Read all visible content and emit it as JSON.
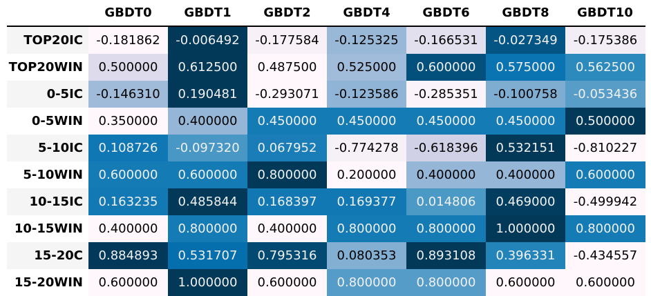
{
  "chart_data": {
    "type": "table",
    "title": "",
    "columns": [
      "GBDT0",
      "GBDT1",
      "GBDT2",
      "GBDT4",
      "GBDT6",
      "GBDT8",
      "GBDT10"
    ],
    "rows": [
      {
        "label": "TOP20IC",
        "values": [
          "-0.181862",
          "-0.006492",
          "-0.177584",
          "-0.125325",
          "-0.166531",
          "-0.027349",
          "-0.175386"
        ]
      },
      {
        "label": "TOP20WIN",
        "values": [
          "0.500000",
          "0.612500",
          "0.487500",
          "0.525000",
          "0.600000",
          "0.575000",
          "0.562500"
        ]
      },
      {
        "label": "0-5IC",
        "values": [
          "-0.146310",
          "0.190481",
          "-0.293071",
          "-0.123586",
          "-0.285351",
          "-0.100758",
          "-0.053436"
        ]
      },
      {
        "label": "0-5WIN",
        "values": [
          "0.350000",
          "0.400000",
          "0.450000",
          "0.450000",
          "0.450000",
          "0.450000",
          "0.500000"
        ]
      },
      {
        "label": "5-10IC",
        "values": [
          "0.108726",
          "-0.097320",
          "0.067952",
          "-0.774278",
          "-0.618396",
          "0.532151",
          "-0.810227"
        ]
      },
      {
        "label": "5-10WIN",
        "values": [
          "0.600000",
          "0.600000",
          "0.800000",
          "0.200000",
          "0.400000",
          "0.400000",
          "0.600000"
        ]
      },
      {
        "label": "10-15IC",
        "values": [
          "0.163235",
          "0.485844",
          "0.168397",
          "0.169377",
          "0.014806",
          "0.469000",
          "-0.499942"
        ]
      },
      {
        "label": "10-15WIN",
        "values": [
          "0.400000",
          "0.800000",
          "0.400000",
          "0.800000",
          "0.800000",
          "1.000000",
          "0.800000"
        ]
      },
      {
        "label": "15-20C",
        "values": [
          "0.884893",
          "0.531707",
          "0.795316",
          "0.080353",
          "0.893108",
          "0.396331",
          "-0.434557"
        ]
      },
      {
        "label": "15-20WIN",
        "values": [
          "0.600000",
          "1.000000",
          "0.600000",
          "0.800000",
          "0.800000",
          "0.600000",
          "0.600000"
        ]
      }
    ],
    "colors": {
      "palette": [
        "#fff7fb",
        "#d0d1e6",
        "#a6bddb",
        "#74a9cf",
        "#3690c0",
        "#0570b0",
        "#045a8d",
        "#023858"
      ],
      "label_background": "#f5f5f5",
      "text_dark": "#000000",
      "text_light": "#f1f1f1"
    }
  }
}
